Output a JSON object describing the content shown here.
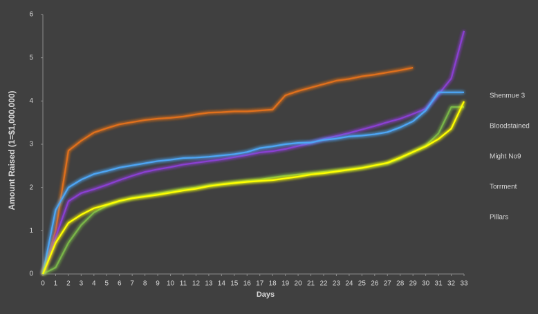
{
  "chart_data": {
    "type": "line",
    "x_label": "Days",
    "y_label": "Amount Raised (1=$1,000,000)",
    "x": [
      0,
      1,
      2,
      3,
      4,
      5,
      6,
      7,
      8,
      9,
      10,
      11,
      12,
      13,
      14,
      15,
      16,
      17,
      18,
      19,
      20,
      21,
      22,
      23,
      24,
      25,
      26,
      27,
      28,
      29,
      30,
      31,
      32,
      33
    ],
    "xlim": [
      0,
      33
    ],
    "xticks": [
      0,
      1,
      2,
      3,
      4,
      5,
      6,
      7,
      8,
      9,
      10,
      11,
      12,
      13,
      14,
      15,
      16,
      17,
      18,
      19,
      20,
      21,
      22,
      23,
      24,
      25,
      26,
      27,
      28,
      29,
      30,
      31,
      32,
      33
    ],
    "ylim": [
      0,
      6
    ],
    "yticks": [
      0,
      1,
      2,
      3,
      4,
      5,
      6
    ],
    "legend": "right",
    "series": [
      {
        "name": "Shenmue 3",
        "color": "#e0701e",
        "values": [
          0,
          1.0,
          2.85,
          3.08,
          3.27,
          3.37,
          3.46,
          3.51,
          3.56,
          3.59,
          3.61,
          3.64,
          3.69,
          3.73,
          3.74,
          3.76,
          3.76,
          3.78,
          3.8,
          4.13,
          4.23,
          4.31,
          4.39,
          4.47,
          4.51,
          4.57,
          4.61,
          4.66,
          4.71,
          4.77,
          null,
          null,
          null,
          null
        ]
      },
      {
        "name": "Bloodstained",
        "color": "#8a3fd1",
        "values": [
          0,
          0.85,
          1.68,
          1.87,
          1.96,
          2.06,
          2.17,
          2.27,
          2.36,
          2.42,
          2.47,
          2.53,
          2.57,
          2.61,
          2.65,
          2.7,
          2.75,
          2.81,
          2.84,
          2.89,
          2.96,
          3.03,
          3.12,
          3.19,
          3.26,
          3.34,
          3.42,
          3.51,
          3.59,
          3.7,
          3.82,
          4.15,
          4.52,
          5.62
        ]
      },
      {
        "name": "Might No9",
        "color": "#7ab648",
        "values": [
          0,
          0.15,
          0.72,
          1.13,
          1.42,
          1.58,
          1.68,
          1.76,
          1.81,
          1.86,
          1.91,
          1.96,
          2.0,
          2.05,
          2.08,
          2.12,
          2.15,
          2.18,
          2.23,
          2.27,
          2.3,
          2.33,
          2.36,
          2.39,
          2.42,
          2.46,
          2.51,
          2.56,
          2.67,
          2.82,
          2.97,
          3.25,
          3.86,
          3.86
        ]
      },
      {
        "name": "Torrment",
        "color": "#4ea6f5",
        "values": [
          0,
          1.48,
          2.0,
          2.18,
          2.31,
          2.38,
          2.46,
          2.51,
          2.56,
          2.61,
          2.64,
          2.68,
          2.69,
          2.71,
          2.74,
          2.77,
          2.82,
          2.91,
          2.95,
          3.0,
          3.03,
          3.04,
          3.1,
          3.13,
          3.18,
          3.2,
          3.23,
          3.28,
          3.39,
          3.53,
          3.78,
          4.2,
          4.2,
          4.2
        ]
      },
      {
        "name": "Pillars",
        "color": "#ffff00",
        "values": [
          0,
          0.72,
          1.18,
          1.37,
          1.52,
          1.6,
          1.69,
          1.75,
          1.79,
          1.83,
          1.88,
          1.93,
          1.97,
          2.03,
          2.07,
          2.1,
          2.13,
          2.15,
          2.17,
          2.21,
          2.25,
          2.3,
          2.33,
          2.37,
          2.41,
          2.45,
          2.51,
          2.57,
          2.69,
          2.82,
          2.95,
          3.12,
          3.36,
          3.99
        ]
      }
    ]
  }
}
